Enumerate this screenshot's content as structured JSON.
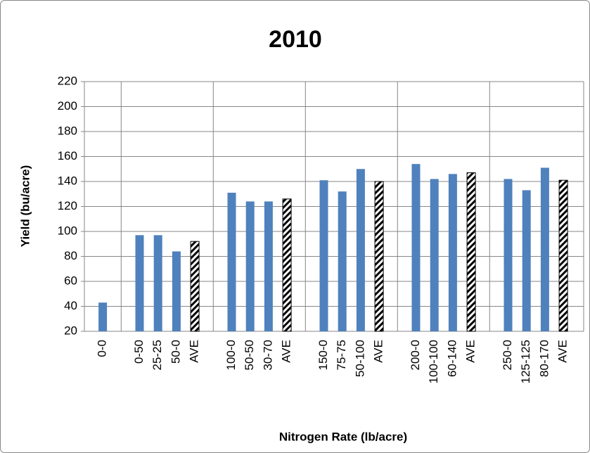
{
  "chart_data": {
    "type": "bar",
    "title": "2010",
    "x_label": "Nitrogen Rate (lb/acre)",
    "y_label": "Yield (bu/acre)",
    "categories": [
      "0-0",
      null,
      "0-50",
      "25-25",
      "50-0",
      "AVE",
      null,
      "100-0",
      "50-50",
      "30-70",
      "AVE",
      null,
      "150-0",
      "75-75",
      "50-100",
      "AVE",
      null,
      "200-0",
      "100-100",
      "60-140",
      "AVE",
      null,
      "250-0",
      "125-125",
      "80-170",
      "AVE"
    ],
    "values": [
      43,
      null,
      97,
      97,
      84,
      92,
      null,
      131,
      124,
      124,
      126,
      null,
      141,
      132,
      150,
      140,
      null,
      154,
      142,
      146,
      147,
      null,
      142,
      133,
      151,
      141
    ],
    "colors": [
      "#4f81bd",
      null,
      "#4f81bd",
      "#4f81bd",
      "#4f81bd",
      "#000000",
      null,
      "#4f81bd",
      "#4f81bd",
      "#4f81bd",
      "#000000",
      null,
      "#4f81bd",
      "#4f81bd",
      "#4f81bd",
      "#000000",
      null,
      "#4f81bd",
      "#4f81bd",
      "#4f81bd",
      "#000000",
      null,
      "#4f81bd",
      "#4f81bd",
      "#4f81bd",
      "#000000"
    ],
    "hatch_color": "#000000",
    "ylim": [
      20,
      220
    ],
    "yticks": [
      20,
      40,
      60,
      80,
      100,
      120,
      140,
      160,
      180,
      200,
      220
    ],
    "grid": true
  }
}
